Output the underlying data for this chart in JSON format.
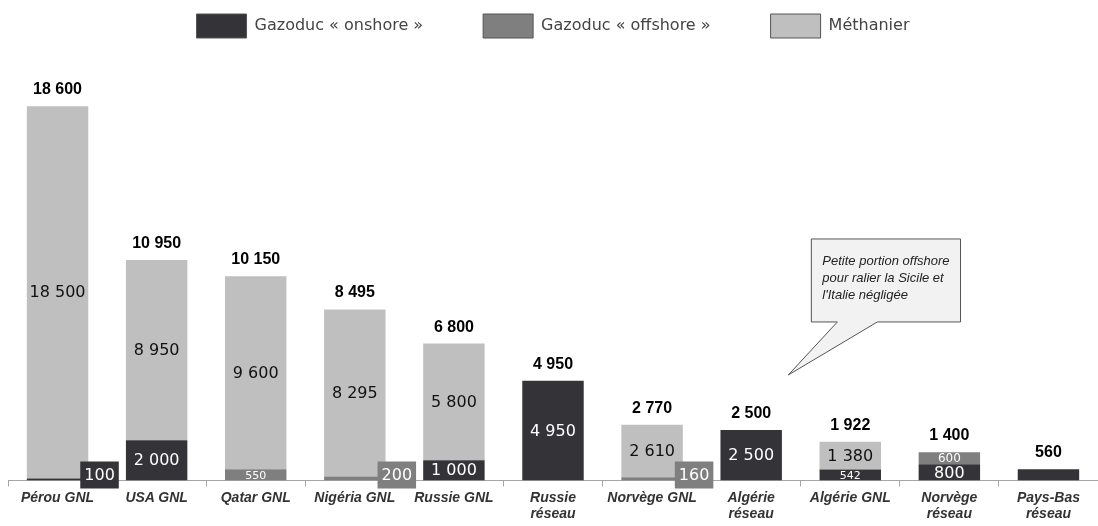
{
  "chart_data": {
    "type": "bar",
    "stacked": true,
    "legend": "top",
    "categories": [
      "Pérou GNL",
      "USA GNL",
      "Qatar GNL",
      "Nigéria GNL",
      "Russie GNL",
      "Russie réseau",
      "Norvège GNL",
      "Algérie réseau",
      "Algérie GNL",
      "Norvège réseau",
      "Pays-Bas réseau"
    ],
    "series": [
      {
        "name": "Gazoduc « onshore »",
        "color": "#343438",
        "values": [
          100,
          2000,
          null,
          null,
          1000,
          4950,
          null,
          2500,
          542,
          800,
          560
        ],
        "value_labels": [
          "100",
          "2 000",
          null,
          null,
          "1 000",
          "4 950",
          null,
          "2 500",
          "542",
          "800",
          null
        ]
      },
      {
        "name": "Gazoduc « offshore »",
        "color": "#7f7f7f",
        "values": [
          null,
          null,
          550,
          200,
          null,
          null,
          160,
          null,
          null,
          600,
          null
        ],
        "value_labels": [
          null,
          null,
          "550",
          "200",
          null,
          null,
          "160",
          null,
          null,
          "600",
          null
        ]
      },
      {
        "name": "Méthanier",
        "color": "#bfbfbf",
        "values": [
          18500,
          8950,
          9600,
          8295,
          5800,
          null,
          2610,
          null,
          1380,
          null,
          null
        ],
        "value_labels": [
          "18 500",
          "8 950",
          "9 600",
          "8 295",
          "5 800",
          null,
          "2 610",
          null,
          "1 380",
          null,
          null
        ]
      }
    ],
    "totals": [
      "18 600",
      "10 950",
      "10 150",
      "8 495",
      "6 800",
      "4 950",
      "2 770",
      "2 500",
      "1 922",
      "1 400",
      "560"
    ],
    "annotations": [
      "Petite portion offshore pour ralier la Sicile et l'Italie négligée"
    ]
  }
}
